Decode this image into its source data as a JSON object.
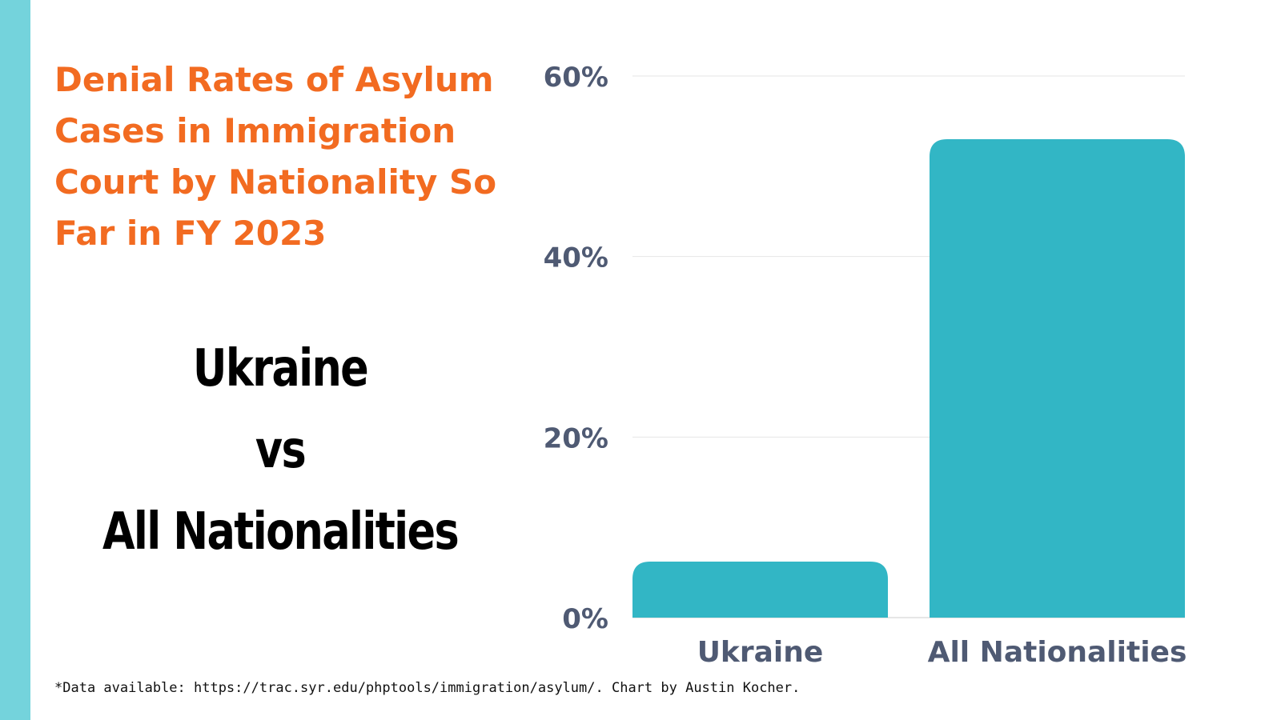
{
  "colors": {
    "stripe": "#74D3DC",
    "title": "#F26B21",
    "bar": "#32B6C5",
    "axis_text": "#4F5A73",
    "grid": "#E6E6E6"
  },
  "title": "Denial Rates of Asylum Cases in Immigration Court by Nationality So Far in FY 2023",
  "comparison": {
    "line1": "Ukraine",
    "line2": "vs",
    "line3": "All Nationalities"
  },
  "footnote": "*Data available: https://trac.syr.edu/phptools/immigration/asylum/. Chart by Austin Kocher.",
  "chart_data": {
    "type": "bar",
    "categories": [
      "Ukraine",
      "All Nationalities"
    ],
    "values": [
      6.2,
      53
    ],
    "ylim": [
      0,
      60
    ],
    "yticks": [
      "0%",
      "20%",
      "40%",
      "60%"
    ],
    "ytick_values": [
      0,
      20,
      40,
      60
    ],
    "grid": true,
    "legend": "none"
  }
}
